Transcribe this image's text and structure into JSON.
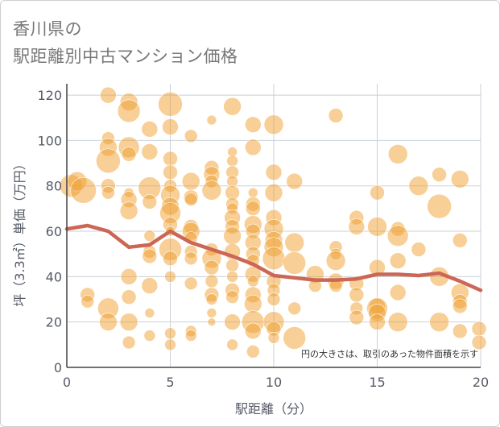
{
  "title_line1": "香川県の",
  "title_line2": "駅距離別中古マンション価格",
  "chart_data": {
    "type": "scatter",
    "xlabel": "駅距離（分）",
    "ylabel": "坪（3.3㎡）単価（万円）",
    "xlim": [
      0,
      20
    ],
    "ylim": [
      0,
      125
    ],
    "xticks": [
      0,
      5,
      10,
      15,
      20
    ],
    "yticks": [
      0,
      20,
      40,
      60,
      80,
      100,
      120
    ],
    "grid": true,
    "note": "円の大きさは、取引のあった物件面積を示す",
    "colors": {
      "bubble": "#f0a030",
      "line": "#cc6655",
      "grid": "#c8d0d8"
    },
    "trend": {
      "x": [
        0,
        1,
        2,
        3,
        4,
        5,
        6,
        7,
        8,
        9,
        10,
        11,
        12,
        13,
        14,
        15,
        16,
        17,
        18,
        19,
        20
      ],
      "y": [
        61,
        62.5,
        60,
        53,
        54,
        60,
        55,
        52,
        49,
        45.5,
        40.5,
        39.5,
        38.5,
        38.5,
        39,
        41,
        41,
        40.5,
        41.5,
        38,
        34
      ]
    },
    "points": [
      {
        "x": 0.2,
        "y": 80,
        "s": 14
      },
      {
        "x": 0.5,
        "y": 82,
        "s": 12
      },
      {
        "x": 0.8,
        "y": 78,
        "s": 16
      },
      {
        "x": 1,
        "y": 32,
        "s": 9
      },
      {
        "x": 1,
        "y": 29,
        "s": 8
      },
      {
        "x": 2,
        "y": 120,
        "s": 10
      },
      {
        "x": 2,
        "y": 101,
        "s": 8
      },
      {
        "x": 2,
        "y": 97,
        "s": 11
      },
      {
        "x": 2,
        "y": 91,
        "s": 15
      },
      {
        "x": 2,
        "y": 80,
        "s": 9
      },
      {
        "x": 2,
        "y": 77,
        "s": 8
      },
      {
        "x": 2,
        "y": 26,
        "s": 13
      },
      {
        "x": 2,
        "y": 20,
        "s": 11
      },
      {
        "x": 3,
        "y": 117,
        "s": 11
      },
      {
        "x": 3,
        "y": 113,
        "s": 14
      },
      {
        "x": 3,
        "y": 97,
        "s": 13
      },
      {
        "x": 3,
        "y": 94,
        "s": 9
      },
      {
        "x": 3,
        "y": 77,
        "s": 6
      },
      {
        "x": 3,
        "y": 74,
        "s": 10
      },
      {
        "x": 3,
        "y": 69,
        "s": 11
      },
      {
        "x": 3,
        "y": 40,
        "s": 10
      },
      {
        "x": 3,
        "y": 31,
        "s": 9
      },
      {
        "x": 3,
        "y": 20,
        "s": 11
      },
      {
        "x": 3,
        "y": 11,
        "s": 8
      },
      {
        "x": 4,
        "y": 105,
        "s": 10
      },
      {
        "x": 4,
        "y": 95,
        "s": 10
      },
      {
        "x": 4,
        "y": 79,
        "s": 14
      },
      {
        "x": 4,
        "y": 73,
        "s": 9
      },
      {
        "x": 4,
        "y": 58,
        "s": 7
      },
      {
        "x": 4,
        "y": 51,
        "s": 8
      },
      {
        "x": 4,
        "y": 49,
        "s": 9
      },
      {
        "x": 4,
        "y": 36,
        "s": 10
      },
      {
        "x": 4,
        "y": 24,
        "s": 6
      },
      {
        "x": 4,
        "y": 14,
        "s": 7
      },
      {
        "x": 5,
        "y": 116,
        "s": 15
      },
      {
        "x": 5,
        "y": 106,
        "s": 10
      },
      {
        "x": 5,
        "y": 92,
        "s": 9
      },
      {
        "x": 5,
        "y": 86,
        "s": 9
      },
      {
        "x": 5,
        "y": 80,
        "s": 8
      },
      {
        "x": 5,
        "y": 76,
        "s": 12
      },
      {
        "x": 5,
        "y": 71,
        "s": 11
      },
      {
        "x": 5,
        "y": 68,
        "s": 13
      },
      {
        "x": 5,
        "y": 63,
        "s": 9
      },
      {
        "x": 5,
        "y": 60,
        "s": 6
      },
      {
        "x": 5,
        "y": 52,
        "s": 14
      },
      {
        "x": 5,
        "y": 48,
        "s": 9
      },
      {
        "x": 5,
        "y": 40,
        "s": 7
      },
      {
        "x": 5,
        "y": 15,
        "s": 7
      },
      {
        "x": 5,
        "y": 10,
        "s": 7
      },
      {
        "x": 6,
        "y": 102,
        "s": 8
      },
      {
        "x": 6,
        "y": 82,
        "s": 11
      },
      {
        "x": 6,
        "y": 75,
        "s": 9
      },
      {
        "x": 6,
        "y": 74,
        "s": 8
      },
      {
        "x": 6,
        "y": 62,
        "s": 9
      },
      {
        "x": 6,
        "y": 60,
        "s": 11
      },
      {
        "x": 6,
        "y": 57,
        "s": 8
      },
      {
        "x": 6,
        "y": 51,
        "s": 8
      },
      {
        "x": 6,
        "y": 48,
        "s": 8
      },
      {
        "x": 6,
        "y": 37,
        "s": 8
      },
      {
        "x": 6,
        "y": 16,
        "s": 7
      },
      {
        "x": 6,
        "y": 14,
        "s": 7
      },
      {
        "x": 7,
        "y": 109,
        "s": 6
      },
      {
        "x": 7,
        "y": 88,
        "s": 9
      },
      {
        "x": 7,
        "y": 85,
        "s": 10
      },
      {
        "x": 7,
        "y": 82,
        "s": 8
      },
      {
        "x": 7,
        "y": 78,
        "s": 12
      },
      {
        "x": 7,
        "y": 52,
        "s": 8
      },
      {
        "x": 7,
        "y": 48,
        "s": 12
      },
      {
        "x": 7,
        "y": 44,
        "s": 9
      },
      {
        "x": 7,
        "y": 38,
        "s": 8
      },
      {
        "x": 7,
        "y": 32,
        "s": 9
      },
      {
        "x": 7,
        "y": 30,
        "s": 7
      },
      {
        "x": 7,
        "y": 24,
        "s": 6
      },
      {
        "x": 7,
        "y": 20,
        "s": 5
      },
      {
        "x": 8,
        "y": 115,
        "s": 11
      },
      {
        "x": 8,
        "y": 95,
        "s": 6
      },
      {
        "x": 8,
        "y": 91,
        "s": 7
      },
      {
        "x": 8,
        "y": 86,
        "s": 8
      },
      {
        "x": 8,
        "y": 82,
        "s": 7
      },
      {
        "x": 8,
        "y": 77,
        "s": 9
      },
      {
        "x": 8,
        "y": 72,
        "s": 8
      },
      {
        "x": 8,
        "y": 70,
        "s": 7
      },
      {
        "x": 8,
        "y": 66,
        "s": 10
      },
      {
        "x": 8,
        "y": 62,
        "s": 9
      },
      {
        "x": 8,
        "y": 58,
        "s": 11
      },
      {
        "x": 8,
        "y": 51,
        "s": 10
      },
      {
        "x": 8,
        "y": 45,
        "s": 8
      },
      {
        "x": 8,
        "y": 40,
        "s": 7
      },
      {
        "x": 8,
        "y": 34,
        "s": 9
      },
      {
        "x": 8,
        "y": 31,
        "s": 8
      },
      {
        "x": 8,
        "y": 20,
        "s": 10
      },
      {
        "x": 8,
        "y": 10,
        "s": 7
      },
      {
        "x": 9,
        "y": 107,
        "s": 10
      },
      {
        "x": 9,
        "y": 97,
        "s": 10
      },
      {
        "x": 9,
        "y": 77,
        "s": 6
      },
      {
        "x": 9,
        "y": 72,
        "s": 9
      },
      {
        "x": 9,
        "y": 70,
        "s": 9
      },
      {
        "x": 9,
        "y": 63,
        "s": 11
      },
      {
        "x": 9,
        "y": 60,
        "s": 9
      },
      {
        "x": 9,
        "y": 55,
        "s": 10
      },
      {
        "x": 9,
        "y": 50,
        "s": 9
      },
      {
        "x": 9,
        "y": 47,
        "s": 8
      },
      {
        "x": 9,
        "y": 41,
        "s": 10
      },
      {
        "x": 9,
        "y": 38,
        "s": 7
      },
      {
        "x": 9,
        "y": 32,
        "s": 10
      },
      {
        "x": 9,
        "y": 28,
        "s": 11
      },
      {
        "x": 9,
        "y": 20,
        "s": 14
      },
      {
        "x": 9,
        "y": 16,
        "s": 10
      },
      {
        "x": 9,
        "y": 7,
        "s": 8
      },
      {
        "x": 10,
        "y": 107,
        "s": 12
      },
      {
        "x": 10,
        "y": 86,
        "s": 10
      },
      {
        "x": 10,
        "y": 77,
        "s": 11
      },
      {
        "x": 10,
        "y": 66,
        "s": 10
      },
      {
        "x": 10,
        "y": 61,
        "s": 12
      },
      {
        "x": 10,
        "y": 56,
        "s": 11
      },
      {
        "x": 10,
        "y": 53,
        "s": 12
      },
      {
        "x": 10,
        "y": 48,
        "s": 14
      },
      {
        "x": 10,
        "y": 38,
        "s": 9
      },
      {
        "x": 10,
        "y": 34,
        "s": 8
      },
      {
        "x": 10,
        "y": 30,
        "s": 8
      },
      {
        "x": 10,
        "y": 20,
        "s": 13
      },
      {
        "x": 10,
        "y": 17,
        "s": 9
      },
      {
        "x": 10,
        "y": 13,
        "s": 7
      },
      {
        "x": 11,
        "y": 82,
        "s": 10
      },
      {
        "x": 11,
        "y": 55,
        "s": 12
      },
      {
        "x": 11,
        "y": 46,
        "s": 14
      },
      {
        "x": 11,
        "y": 26,
        "s": 8
      },
      {
        "x": 11,
        "y": 13,
        "s": 14
      },
      {
        "x": 12,
        "y": 41,
        "s": 11
      },
      {
        "x": 12,
        "y": 36,
        "s": 8
      },
      {
        "x": 13,
        "y": 111,
        "s": 9
      },
      {
        "x": 13,
        "y": 53,
        "s": 8
      },
      {
        "x": 13,
        "y": 50,
        "s": 7
      },
      {
        "x": 13,
        "y": 47,
        "s": 12
      },
      {
        "x": 13,
        "y": 38,
        "s": 10
      },
      {
        "x": 13,
        "y": 36,
        "s": 8
      },
      {
        "x": 14,
        "y": 66,
        "s": 9
      },
      {
        "x": 14,
        "y": 62,
        "s": 10
      },
      {
        "x": 14,
        "y": 37,
        "s": 9
      },
      {
        "x": 14,
        "y": 32,
        "s": 9
      },
      {
        "x": 14,
        "y": 26,
        "s": 8
      },
      {
        "x": 14,
        "y": 22,
        "s": 9
      },
      {
        "x": 15,
        "y": 77,
        "s": 9
      },
      {
        "x": 15,
        "y": 62,
        "s": 12
      },
      {
        "x": 15,
        "y": 44,
        "s": 10
      },
      {
        "x": 15,
        "y": 27,
        "s": 10
      },
      {
        "x": 15,
        "y": 26,
        "s": 13
      },
      {
        "x": 15,
        "y": 24,
        "s": 11
      },
      {
        "x": 15,
        "y": 20,
        "s": 10
      },
      {
        "x": 16,
        "y": 94,
        "s": 12
      },
      {
        "x": 16,
        "y": 61,
        "s": 9
      },
      {
        "x": 16,
        "y": 58,
        "s": 13
      },
      {
        "x": 16,
        "y": 47,
        "s": 10
      },
      {
        "x": 16,
        "y": 33,
        "s": 10
      },
      {
        "x": 16,
        "y": 20,
        "s": 12
      },
      {
        "x": 17,
        "y": 80,
        "s": 12
      },
      {
        "x": 17,
        "y": 52,
        "s": 9
      },
      {
        "x": 18,
        "y": 85,
        "s": 9
      },
      {
        "x": 18,
        "y": 71,
        "s": 15
      },
      {
        "x": 18,
        "y": 40,
        "s": 12
      },
      {
        "x": 18,
        "y": 20,
        "s": 12
      },
      {
        "x": 19,
        "y": 83,
        "s": 11
      },
      {
        "x": 19,
        "y": 56,
        "s": 9
      },
      {
        "x": 19,
        "y": 33,
        "s": 11
      },
      {
        "x": 19,
        "y": 29,
        "s": 9
      },
      {
        "x": 19,
        "y": 27,
        "s": 9
      },
      {
        "x": 19,
        "y": 16,
        "s": 9
      },
      {
        "x": 20,
        "y": 17,
        "s": 9
      },
      {
        "x": 20,
        "y": 11,
        "s": 9
      }
    ]
  }
}
